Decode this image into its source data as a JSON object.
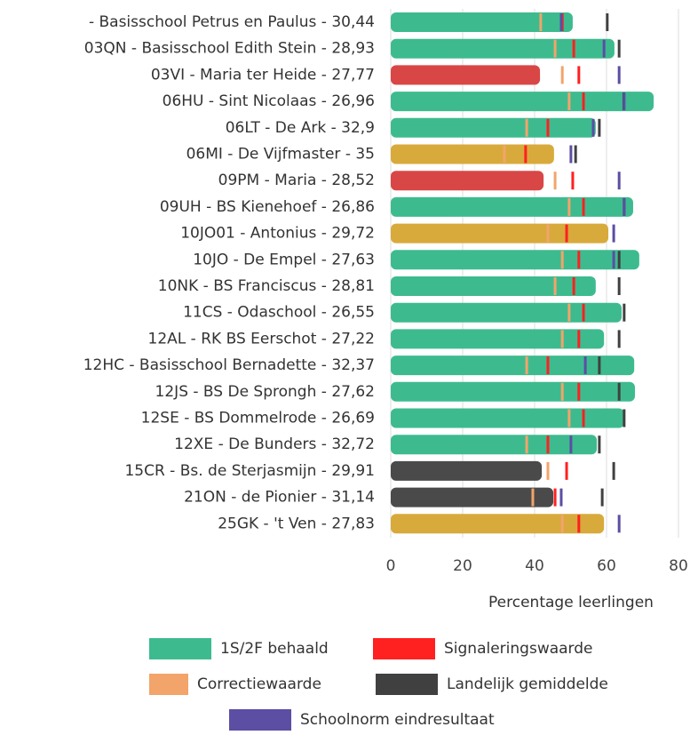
{
  "chart_data": {
    "type": "bar",
    "orientation": "horizontal",
    "x_label": "Percentage leerlingen",
    "categories": [
      "- Basisschool Petrus en Paulus - 30,44",
      "03QN - Basisschool Edith Stein - 28,93",
      "03VI - Maria ter Heide - 27,77",
      "06HU - Sint Nicolaas - 26,96",
      "06LT - De Ark - 32,9",
      "06MI - De Vijfmaster - 35",
      "09PM - Maria - 28,52",
      "09UH - BS Kienehoef - 26,86",
      "10JO01 - Antonius - 29,72",
      "10JO - De Empel - 27,63",
      "10NK - BS Franciscus - 28,81",
      "11CS - Odaschool - 26,55",
      "12AL - RK BS Eerschot - 27,22",
      "12HC - Basisschool Bernadette - 32,37",
      "12JS - BS De Sprongh - 27,62",
      "12SE - BS Dommelrode - 26,69",
      "12XE - De Bunders - 32,72",
      "15CR - Bs. de Sterjasmijn - 29,91",
      "21ON - de Pionier - 31,14",
      "25GK - 't Ven - 27,83"
    ],
    "series": [
      {
        "name": "1S/2F behaald",
        "color": "#3dbb8f",
        "kind": "bar",
        "values": [
          50.6,
          62.2,
          41.5,
          73.1,
          57,
          45.4,
          42.5,
          67.4,
          60.5,
          69.1,
          57,
          64.2,
          59.3,
          67.7,
          67.9,
          64.9,
          57.3,
          42,
          45.2,
          59.3
        ],
        "bar_colors": [
          "#3dbb8f",
          "#3dbb8f",
          "#d94646",
          "#3dbb8f",
          "#3dbb8f",
          "#d8aa3c",
          "#d94646",
          "#3dbb8f",
          "#d8aa3c",
          "#3dbb8f",
          "#3dbb8f",
          "#3dbb8f",
          "#3dbb8f",
          "#3dbb8f",
          "#3dbb8f",
          "#3dbb8f",
          "#3dbb8f",
          "#4a4a4a",
          "#4a4a4a",
          "#d8aa3c"
        ]
      },
      {
        "name": "Signaleringswaarde",
        "color": "#ff2020",
        "kind": "marker",
        "values": [
          47.7,
          50.9,
          52.3,
          53.6,
          43.7,
          37.5,
          50.6,
          53.6,
          48.9,
          52.3,
          50.9,
          53.6,
          52.3,
          43.7,
          52.3,
          53.6,
          43.7,
          48.9,
          45.7,
          52.3
        ]
      },
      {
        "name": "Correctiewaarde",
        "color": "#f2a46a",
        "kind": "marker",
        "values": [
          41.7,
          45.7,
          47.7,
          49.6,
          37.8,
          31.6,
          45.7,
          49.6,
          43.7,
          47.7,
          45.7,
          49.6,
          47.7,
          37.8,
          47.7,
          49.6,
          37.8,
          43.7,
          39.5,
          47.7
        ]
      },
      {
        "name": "Landelijk gemiddelde",
        "color": "#404040",
        "kind": "marker",
        "values": [
          60.2,
          63.5,
          null,
          64.8,
          58,
          51.4,
          null,
          64.9,
          null,
          63.5,
          63.5,
          64.9,
          63.5,
          58,
          63.5,
          64.9,
          58,
          62,
          58.8,
          null
        ]
      },
      {
        "name": "Schoolnorm eindresultaat",
        "color": "#5b4ea3",
        "kind": "marker",
        "values": [
          47.4,
          59.3,
          63.5,
          64.9,
          56.3,
          50.1,
          63.5,
          64.9,
          62,
          62,
          null,
          null,
          null,
          54.1,
          null,
          null,
          50.1,
          null,
          47.4,
          63.5
        ]
      }
    ],
    "xlim": [
      0,
      80
    ],
    "xticks": [
      0,
      20,
      40,
      60,
      80
    ],
    "grid": true
  }
}
